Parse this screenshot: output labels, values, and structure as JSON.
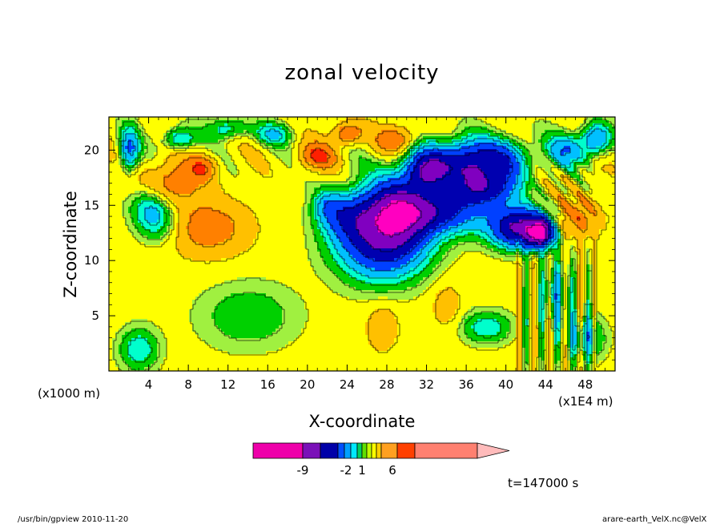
{
  "chart_data": {
    "type": "heatmap",
    "title": "zonal velocity",
    "xlabel": "X-coordinate",
    "ylabel": "Z-coordinate",
    "x_unit": "(x1E4 m)",
    "y_unit": "(x1000 m)",
    "xlim": [
      0,
      51
    ],
    "ylim": [
      0,
      23
    ],
    "x_ticks": [
      4,
      8,
      12,
      16,
      20,
      24,
      28,
      32,
      36,
      40,
      44,
      48
    ],
    "y_ticks": [
      5,
      10,
      15,
      20
    ],
    "fill_palette": [
      "#ff00c0",
      "#8000c0",
      "#0000b0",
      "#0040ff",
      "#00c0ff",
      "#00ffcc",
      "#00d000",
      "#a0f040",
      "#ffff00",
      "#ffc000",
      "#ff8000",
      "#ff2000",
      "#ff8070",
      "#ffc0c0"
    ],
    "colorbar_labels": [
      "-9",
      "-2",
      "1",
      "6"
    ],
    "colorbar_colors": [
      "#ee00aa",
      "#7a10b8",
      "#0000a8",
      "#0050ff",
      "#00a0ff",
      "#00e8ff",
      "#00d060",
      "#60e000",
      "#c0ff00",
      "#ffff00",
      "#ffd000",
      "#ffa020",
      "#ff4000",
      "#ff8070",
      "#ffbbbb"
    ],
    "grid": false,
    "legend": "colorbar bottom"
  },
  "footer": {
    "left": "/usr/bin/gpview   2010-11-20",
    "right": "arare-earth_VelX.nc@VelX"
  },
  "time_label": "t=147000 s"
}
